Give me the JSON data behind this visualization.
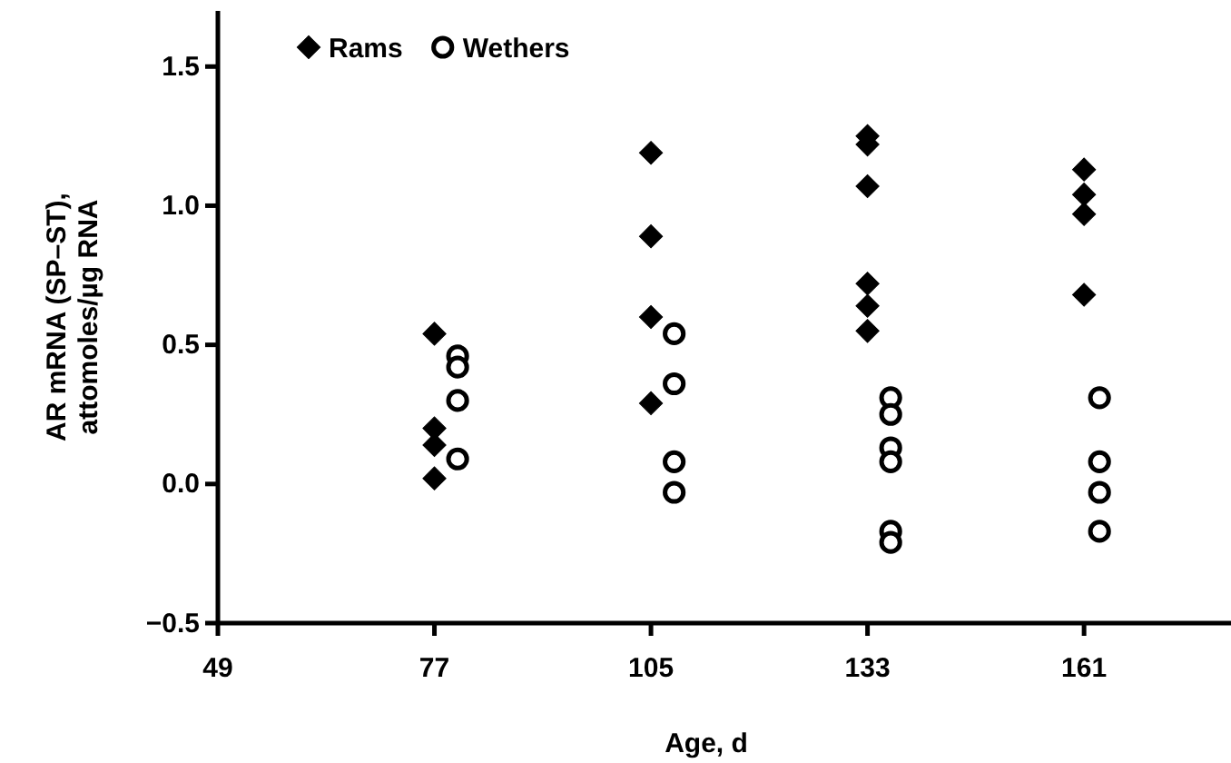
{
  "chart_data": {
    "type": "scatter",
    "xlabel": "Age, d",
    "ylabel": "AR mRNA (SP–ST),\nattomoles/µg RNA",
    "xlim": [
      49,
      180
    ],
    "xticks": [
      49,
      77,
      105,
      133,
      161
    ],
    "ylim": [
      -0.5,
      1.7
    ],
    "yticks": [
      {
        "value": -0.5,
        "label": "−0.5"
      },
      {
        "value": 0,
        "label": "0.0"
      },
      0.5,
      {
        "value": 1,
        "label": "1.0"
      },
      1.5
    ],
    "legend": "top left",
    "grid": false,
    "series": [
      {
        "name": "Rams",
        "color": "#000000",
        "marker": "diamond",
        "x": [
          77,
          77,
          77,
          77,
          105,
          105,
          105,
          105,
          133,
          133,
          133,
          133,
          133,
          133,
          161,
          161,
          161,
          161
        ],
        "values": [
          0.54,
          0.2,
          0.14,
          0.02,
          1.19,
          0.89,
          0.6,
          0.29,
          1.25,
          1.22,
          1.07,
          0.72,
          0.64,
          0.55,
          1.13,
          1.04,
          0.97,
          0.68
        ]
      },
      {
        "name": "Wethers",
        "color": "#000000",
        "marker": "circle",
        "x": [
          80,
          80,
          80,
          80,
          108,
          108,
          108,
          108,
          136,
          136,
          136,
          136,
          136,
          136,
          163,
          163,
          163,
          163
        ],
        "values": [
          0.46,
          0.42,
          0.3,
          0.09,
          0.54,
          0.36,
          0.08,
          -0.03,
          0.31,
          0.25,
          0.13,
          0.08,
          -0.17,
          -0.21,
          0.31,
          0.08,
          -0.03,
          -0.17
        ]
      }
    ]
  }
}
